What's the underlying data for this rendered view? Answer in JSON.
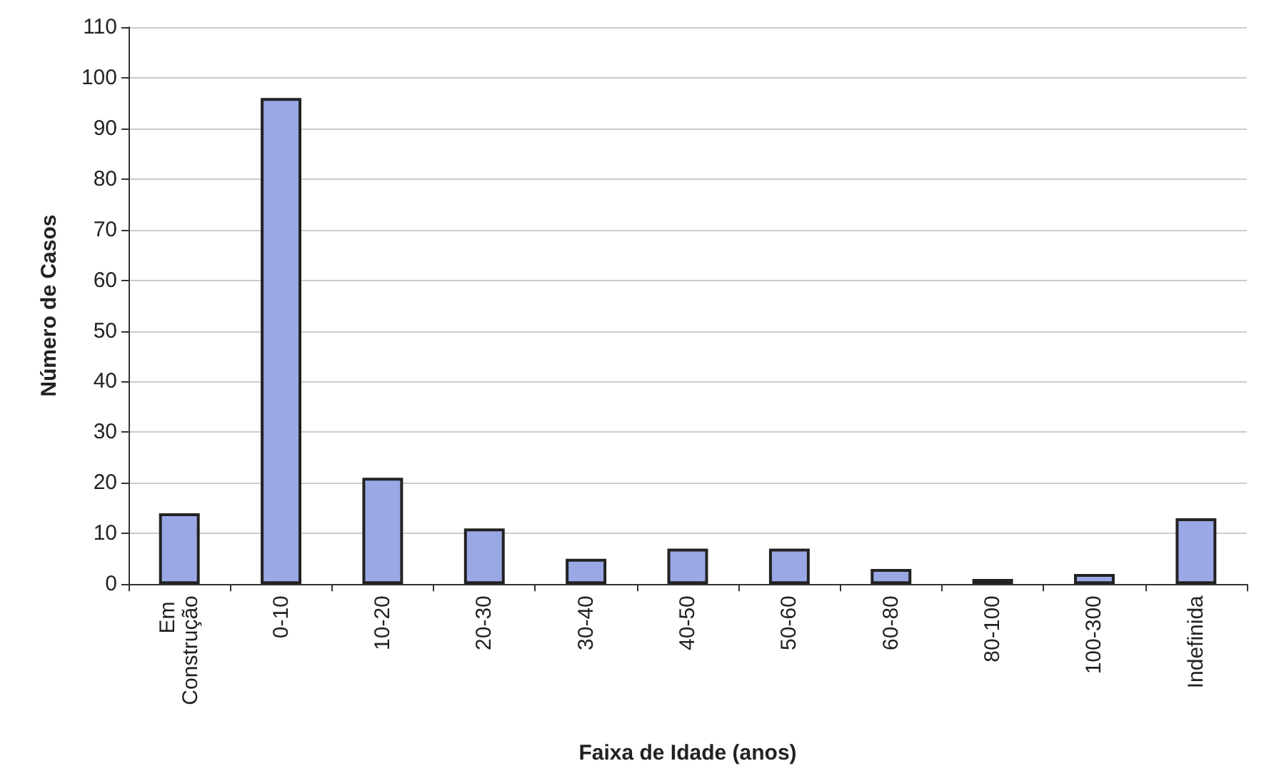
{
  "chart_data": {
    "type": "bar",
    "xlabel": "Faixa de Idade (anos)",
    "ylabel": "Número de Casos",
    "categories": [
      "Em Construção",
      "0-10",
      "10-20",
      "20-30",
      "30-40",
      "40-50",
      "50-60",
      "60-80",
      "80-100",
      "100-300",
      "Indefinida"
    ],
    "values": [
      14,
      96,
      21,
      11,
      5,
      7,
      7,
      3,
      1,
      2,
      13
    ],
    "color": "#9aa8e6",
    "ylim": [
      0,
      110
    ],
    "yticks": [
      0,
      10,
      20,
      30,
      40,
      50,
      60,
      70,
      80,
      90,
      100,
      110
    ],
    "grid": "y"
  }
}
